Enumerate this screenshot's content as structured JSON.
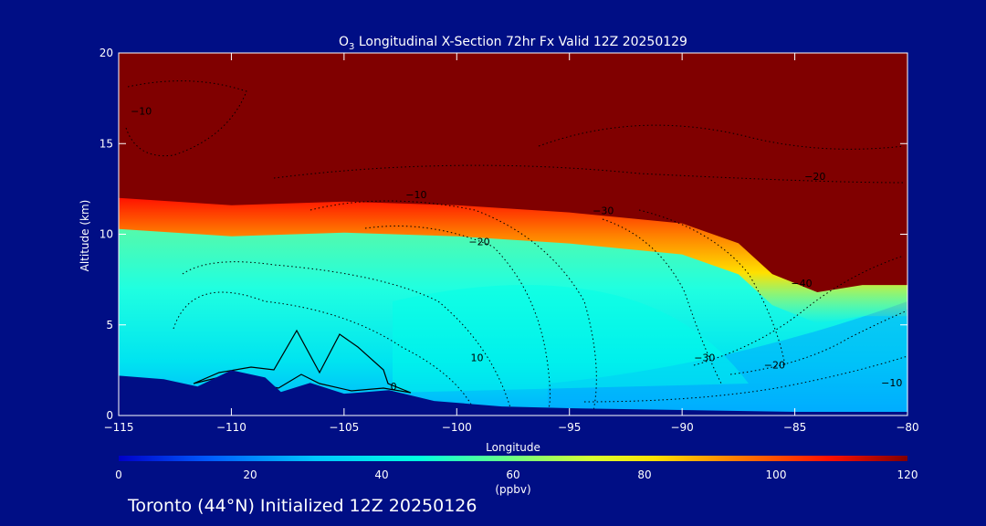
{
  "chart_data": {
    "type": "heatmap",
    "title_prefix": "O",
    "title_sub": "3",
    "title_rest": " Longitudinal X-Section 72hr  Fx Valid 12Z 20250129",
    "xlabel": "Longitude",
    "ylabel": "Altitude (km)",
    "xlim": [
      -115,
      -80
    ],
    "ylim": [
      0,
      20
    ],
    "x_ticks": [
      -115,
      -110,
      -105,
      -100,
      -95,
      -90,
      -85,
      -80
    ],
    "x_tick_labels": [
      "−115",
      "−110",
      "−105",
      "−100",
      "−95",
      "−90",
      "−85",
      "−80"
    ],
    "y_ticks": [
      0,
      5,
      10,
      15,
      20
    ],
    "y_tick_labels": [
      "0",
      "5",
      "10",
      "15",
      "20"
    ],
    "colorbar": {
      "min": 0,
      "max": 120,
      "ticks": [
        0,
        20,
        40,
        60,
        80,
        100,
        120
      ],
      "tick_labels": [
        "0",
        "20",
        "40",
        "60",
        "80",
        "100",
        "120"
      ],
      "label": "(ppbv)",
      "colors": [
        "#0000c8",
        "#0060ff",
        "#00c8ff",
        "#00ffe0",
        "#70ff80",
        "#d8ff30",
        "#ffe000",
        "#ff8000",
        "#ff1000",
        "#800000"
      ]
    },
    "tropopause_km": [
      {
        "lon": -115,
        "alt": 12.0
      },
      {
        "lon": -110,
        "alt": 11.6
      },
      {
        "lon": -105,
        "alt": 11.8
      },
      {
        "lon": -100,
        "alt": 11.6
      },
      {
        "lon": -95,
        "alt": 11.2
      },
      {
        "lon": -90,
        "alt": 10.6
      },
      {
        "lon": -87.5,
        "alt": 9.5
      },
      {
        "lon": -86,
        "alt": 7.8
      },
      {
        "lon": -84,
        "alt": 6.8
      },
      {
        "lon": -82,
        "alt": 7.2
      },
      {
        "lon": -80,
        "alt": 7.2
      }
    ],
    "contour_labels": [
      {
        "text": "−10",
        "lon": -114,
        "alt": 16.6
      },
      {
        "text": "−10",
        "lon": -101.8,
        "alt": 12.0
      },
      {
        "text": "−30",
        "lon": -93.5,
        "alt": 11.1
      },
      {
        "text": "−20",
        "lon": -84.1,
        "alt": 13.0
      },
      {
        "text": "−20",
        "lon": -99.0,
        "alt": 9.4
      },
      {
        "text": "−40",
        "lon": -84.7,
        "alt": 7.1
      },
      {
        "text": "10",
        "lon": -99.1,
        "alt": 3.0
      },
      {
        "text": "−30",
        "lon": -89.0,
        "alt": 3.0
      },
      {
        "text": "−20",
        "lon": -85.9,
        "alt": 2.6
      },
      {
        "text": "−10",
        "lon": -80.7,
        "alt": 1.6
      },
      {
        "text": "0",
        "lon": -102.8,
        "alt": 1.4
      }
    ],
    "terrain_km": [
      {
        "lon": -115,
        "alt": 2.2
      },
      {
        "lon": -113,
        "alt": 2.0
      },
      {
        "lon": -111.5,
        "alt": 1.6
      },
      {
        "lon": -110,
        "alt": 2.5
      },
      {
        "lon": -108.5,
        "alt": 2.1
      },
      {
        "lon": -107.8,
        "alt": 1.3
      },
      {
        "lon": -106.5,
        "alt": 1.8
      },
      {
        "lon": -105,
        "alt": 1.2
      },
      {
        "lon": -103,
        "alt": 1.4
      },
      {
        "lon": -101,
        "alt": 0.8
      },
      {
        "lon": -98,
        "alt": 0.5
      },
      {
        "lon": -95,
        "alt": 0.4
      },
      {
        "lon": -90,
        "alt": 0.3
      },
      {
        "lon": -85,
        "alt": 0.2
      },
      {
        "lon": -80,
        "alt": 0.2
      }
    ]
  },
  "footer": "Toronto (44°N) Initialized 12Z 20250126"
}
